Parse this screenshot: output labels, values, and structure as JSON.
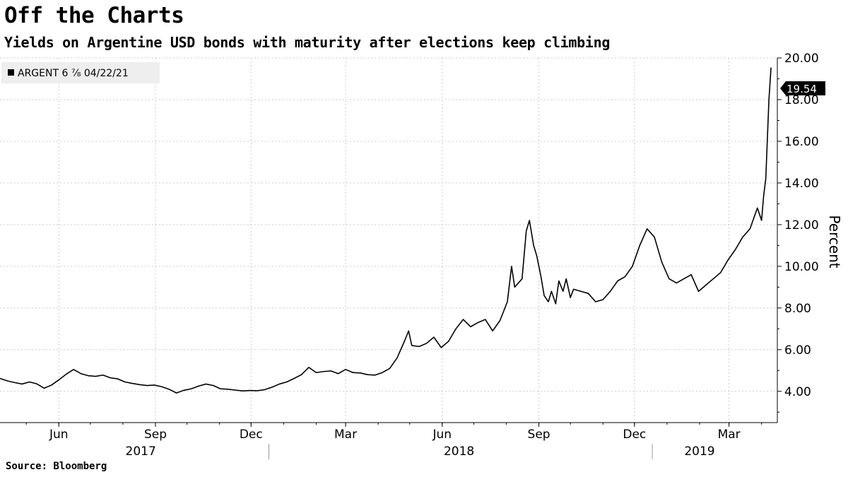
{
  "title": "Off the Charts",
  "subtitle": "Yields on Argentine USD bonds with maturity after elections keep climbing",
  "source": "Source: Bloomberg",
  "colors": {
    "line": "#000000",
    "grid": "#cccccc",
    "axis": "#000000",
    "legend_bg": "#eeeeee",
    "last_label_bg": "#000000"
  },
  "chart_data": {
    "type": "line",
    "title": "Off the Charts",
    "subtitle": "Yields on Argentine USD bonds with maturity after elections keep climbing",
    "ylabel": "Percent",
    "xlabel": "",
    "y_axis_side": "right",
    "ylim": [
      2.5,
      20.0
    ],
    "xlim": [
      "2017-04-20",
      "2019-04-30"
    ],
    "y_ticks": [
      {
        "value": 4,
        "label": "4.00"
      },
      {
        "value": 6,
        "label": "6.00"
      },
      {
        "value": 8,
        "label": "8.00"
      },
      {
        "value": 10,
        "label": "10.00"
      },
      {
        "value": 12,
        "label": "12.00"
      },
      {
        "value": 14,
        "label": "14.00"
      },
      {
        "value": 16,
        "label": "16.00"
      },
      {
        "value": 18,
        "label": "18.00"
      },
      {
        "value": 20,
        "label": "20.00"
      }
    ],
    "x_ticks": [
      {
        "date": "2017-06-15",
        "label": "Jun"
      },
      {
        "date": "2017-09-15",
        "label": "Sep"
      },
      {
        "date": "2017-12-15",
        "label": "Dec"
      },
      {
        "date": "2018-03-15",
        "label": "Mar"
      },
      {
        "date": "2018-06-15",
        "label": "Jun"
      },
      {
        "date": "2018-09-15",
        "label": "Sep"
      },
      {
        "date": "2018-12-15",
        "label": "Dec"
      },
      {
        "date": "2019-03-15",
        "label": "Mar"
      }
    ],
    "year_labels": [
      {
        "date": "2017-09-01",
        "label": "2017"
      },
      {
        "date": "2018-07-01",
        "label": "2018"
      },
      {
        "date": "2019-02-15",
        "label": "2019"
      }
    ],
    "year_separators": [
      "2018-01-01",
      "2019-01-01"
    ],
    "grid": true,
    "legend_position": "top-left",
    "last_value_label": "19.54",
    "series": [
      {
        "name": "ARGENT 6 ⅞ 04/22/21",
        "points": [
          [
            "2017-04-20",
            4.62
          ],
          [
            "2017-04-27",
            4.5
          ],
          [
            "2017-05-04",
            4.42
          ],
          [
            "2017-05-11",
            4.35
          ],
          [
            "2017-05-18",
            4.45
          ],
          [
            "2017-05-25",
            4.36
          ],
          [
            "2017-06-01",
            4.15
          ],
          [
            "2017-06-08",
            4.3
          ],
          [
            "2017-06-15",
            4.55
          ],
          [
            "2017-06-22",
            4.82
          ],
          [
            "2017-06-29",
            5.05
          ],
          [
            "2017-07-06",
            4.85
          ],
          [
            "2017-07-13",
            4.75
          ],
          [
            "2017-07-20",
            4.72
          ],
          [
            "2017-07-27",
            4.78
          ],
          [
            "2017-08-03",
            4.65
          ],
          [
            "2017-08-10",
            4.6
          ],
          [
            "2017-08-17",
            4.45
          ],
          [
            "2017-08-24",
            4.38
          ],
          [
            "2017-08-31",
            4.32
          ],
          [
            "2017-09-07",
            4.28
          ],
          [
            "2017-09-14",
            4.3
          ],
          [
            "2017-09-21",
            4.22
          ],
          [
            "2017-09-28",
            4.1
          ],
          [
            "2017-10-05",
            3.92
          ],
          [
            "2017-10-12",
            4.05
          ],
          [
            "2017-10-19",
            4.12
          ],
          [
            "2017-10-26",
            4.25
          ],
          [
            "2017-11-02",
            4.35
          ],
          [
            "2017-11-09",
            4.28
          ],
          [
            "2017-11-16",
            4.12
          ],
          [
            "2017-11-23",
            4.1
          ],
          [
            "2017-11-30",
            4.06
          ],
          [
            "2017-12-07",
            4.02
          ],
          [
            "2017-12-14",
            4.04
          ],
          [
            "2017-12-21",
            4.03
          ],
          [
            "2017-12-28",
            4.08
          ],
          [
            "2018-01-04",
            4.2
          ],
          [
            "2018-01-11",
            4.35
          ],
          [
            "2018-01-18",
            4.45
          ],
          [
            "2018-01-25",
            4.62
          ],
          [
            "2018-02-01",
            4.8
          ],
          [
            "2018-02-08",
            5.15
          ],
          [
            "2018-02-15",
            4.9
          ],
          [
            "2018-02-22",
            4.95
          ],
          [
            "2018-03-01",
            4.98
          ],
          [
            "2018-03-08",
            4.85
          ],
          [
            "2018-03-15",
            5.05
          ],
          [
            "2018-03-22",
            4.9
          ],
          [
            "2018-03-29",
            4.88
          ],
          [
            "2018-04-05",
            4.8
          ],
          [
            "2018-04-12",
            4.78
          ],
          [
            "2018-04-19",
            4.9
          ],
          [
            "2018-04-26",
            5.1
          ],
          [
            "2018-05-03",
            5.6
          ],
          [
            "2018-05-10",
            6.4
          ],
          [
            "2018-05-14",
            6.9
          ],
          [
            "2018-05-17",
            6.2
          ],
          [
            "2018-05-24",
            6.15
          ],
          [
            "2018-05-31",
            6.3
          ],
          [
            "2018-06-07",
            6.6
          ],
          [
            "2018-06-14",
            6.1
          ],
          [
            "2018-06-21",
            6.4
          ],
          [
            "2018-06-28",
            7.0
          ],
          [
            "2018-07-05",
            7.45
          ],
          [
            "2018-07-12",
            7.1
          ],
          [
            "2018-07-19",
            7.3
          ],
          [
            "2018-07-26",
            7.45
          ],
          [
            "2018-08-02",
            6.9
          ],
          [
            "2018-08-09",
            7.4
          ],
          [
            "2018-08-16",
            8.3
          ],
          [
            "2018-08-20",
            10.0
          ],
          [
            "2018-08-23",
            9.0
          ],
          [
            "2018-08-30",
            9.4
          ],
          [
            "2018-09-03",
            11.7
          ],
          [
            "2018-09-06",
            12.2
          ],
          [
            "2018-09-10",
            11.0
          ],
          [
            "2018-09-13",
            10.5
          ],
          [
            "2018-09-17",
            9.5
          ],
          [
            "2018-09-20",
            8.6
          ],
          [
            "2018-09-24",
            8.3
          ],
          [
            "2018-09-27",
            8.8
          ],
          [
            "2018-10-01",
            8.2
          ],
          [
            "2018-10-04",
            9.3
          ],
          [
            "2018-10-08",
            8.8
          ],
          [
            "2018-10-11",
            9.4
          ],
          [
            "2018-10-15",
            8.5
          ],
          [
            "2018-10-18",
            8.9
          ],
          [
            "2018-10-25",
            8.8
          ],
          [
            "2018-11-01",
            8.7
          ],
          [
            "2018-11-08",
            8.3
          ],
          [
            "2018-11-15",
            8.4
          ],
          [
            "2018-11-22",
            8.8
          ],
          [
            "2018-11-29",
            9.3
          ],
          [
            "2018-12-06",
            9.5
          ],
          [
            "2018-12-13",
            10.0
          ],
          [
            "2018-12-20",
            11.0
          ],
          [
            "2018-12-27",
            11.8
          ],
          [
            "2019-01-03",
            11.4
          ],
          [
            "2019-01-10",
            10.2
          ],
          [
            "2019-01-17",
            9.4
          ],
          [
            "2019-01-24",
            9.2
          ],
          [
            "2019-01-31",
            9.4
          ],
          [
            "2019-02-07",
            9.6
          ],
          [
            "2019-02-14",
            8.8
          ],
          [
            "2019-02-21",
            9.1
          ],
          [
            "2019-02-28",
            9.4
          ],
          [
            "2019-03-07",
            9.7
          ],
          [
            "2019-03-14",
            10.3
          ],
          [
            "2019-03-21",
            10.8
          ],
          [
            "2019-03-28",
            11.4
          ],
          [
            "2019-04-04",
            11.8
          ],
          [
            "2019-04-11",
            12.8
          ],
          [
            "2019-04-15",
            12.2
          ],
          [
            "2019-04-17",
            13.4
          ],
          [
            "2019-04-19",
            14.2
          ],
          [
            "2019-04-22",
            18.0
          ],
          [
            "2019-04-24",
            19.54
          ]
        ]
      }
    ]
  }
}
